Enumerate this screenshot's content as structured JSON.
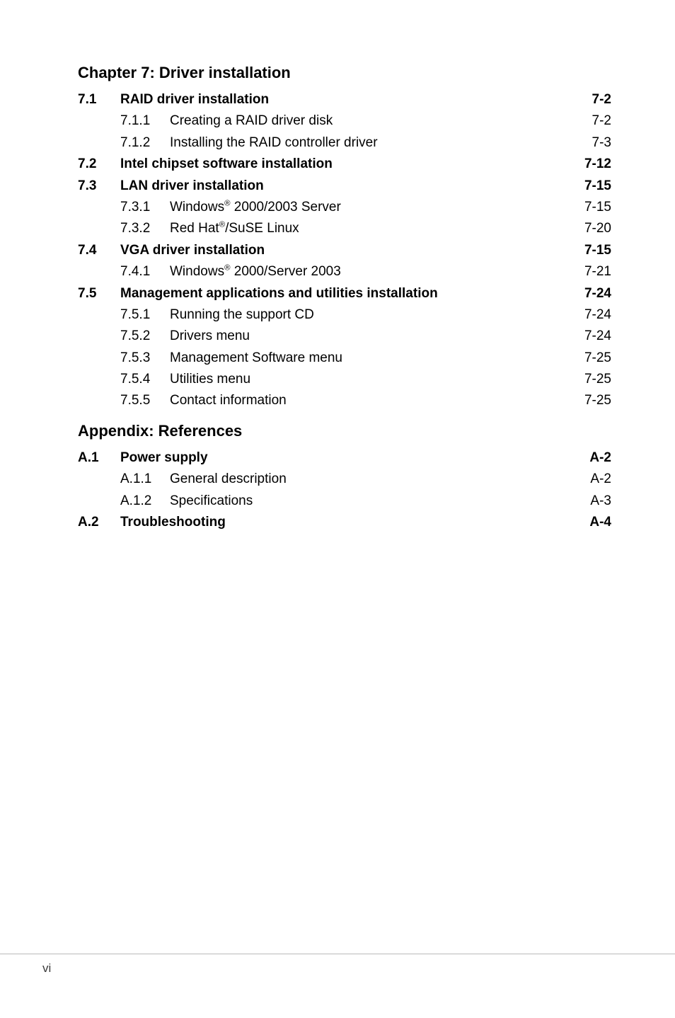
{
  "chapter_title": "Chapter 7: Driver installation",
  "appendix_title": "Appendix: References",
  "toc": [
    {
      "level": "main",
      "num": "7.1",
      "text": "RAID driver installation ",
      "page": "7-2",
      "bold": true
    },
    {
      "level": "sub",
      "num": "7.1.1",
      "text": "Creating a RAID driver disk ",
      "page": "7-2"
    },
    {
      "level": "sub",
      "num": "7.1.2",
      "text": "Installing the RAID controller driver ",
      "page": "7-3"
    },
    {
      "level": "main",
      "num": "7.2",
      "text": "Intel chipset software installation ",
      "page": "7-12",
      "bold": true
    },
    {
      "level": "main",
      "num": "7.3",
      "text": "LAN driver installation",
      "page": "7-15",
      "bold": true
    },
    {
      "level": "sub",
      "num": "7.3.1",
      "text": "Windows® 2000/2003 Server ",
      "page": "7-15"
    },
    {
      "level": "sub",
      "num": "7.3.2",
      "text": "Red Hat®/SuSE Linux",
      "page": "7-20"
    },
    {
      "level": "main",
      "num": "7.4",
      "text": "VGA driver installation",
      "page": "7-15",
      "bold": true
    },
    {
      "level": "sub",
      "num": "7.4.1",
      "text": "Windows® 2000/Server 2003 ",
      "page": "7-21"
    },
    {
      "level": "main",
      "num": "7.5",
      "text": "Management applications and utilities installation ",
      "page": "7-24",
      "bold": true
    },
    {
      "level": "sub",
      "num": "7.5.1",
      "text": "Running the support CD ",
      "page": "7-24"
    },
    {
      "level": "sub",
      "num": "7.5.2",
      "text": "Drivers menu",
      "page": "7-24"
    },
    {
      "level": "sub",
      "num": "7.5.3",
      "text": "Management Software menu",
      "page": "7-25"
    },
    {
      "level": "sub",
      "num": "7.5.4",
      "text": "Utilities menu ",
      "page": "7-25"
    },
    {
      "level": "sub",
      "num": "7.5.5",
      "text": "Contact information",
      "page": "7-25"
    }
  ],
  "appendix_toc": [
    {
      "level": "main",
      "num": "A.1",
      "text": "Power supply",
      "page": "A-2",
      "bold": true
    },
    {
      "level": "sub",
      "num": "A.1.1",
      "text": "General description",
      "page": "A-2"
    },
    {
      "level": "sub",
      "num": "A.1.2",
      "text": "Specifications",
      "page": "A-3"
    },
    {
      "level": "main",
      "num": "A.2",
      "text": "Troubleshooting",
      "page": "A-4",
      "bold": true
    }
  ],
  "footer_page": "vi"
}
